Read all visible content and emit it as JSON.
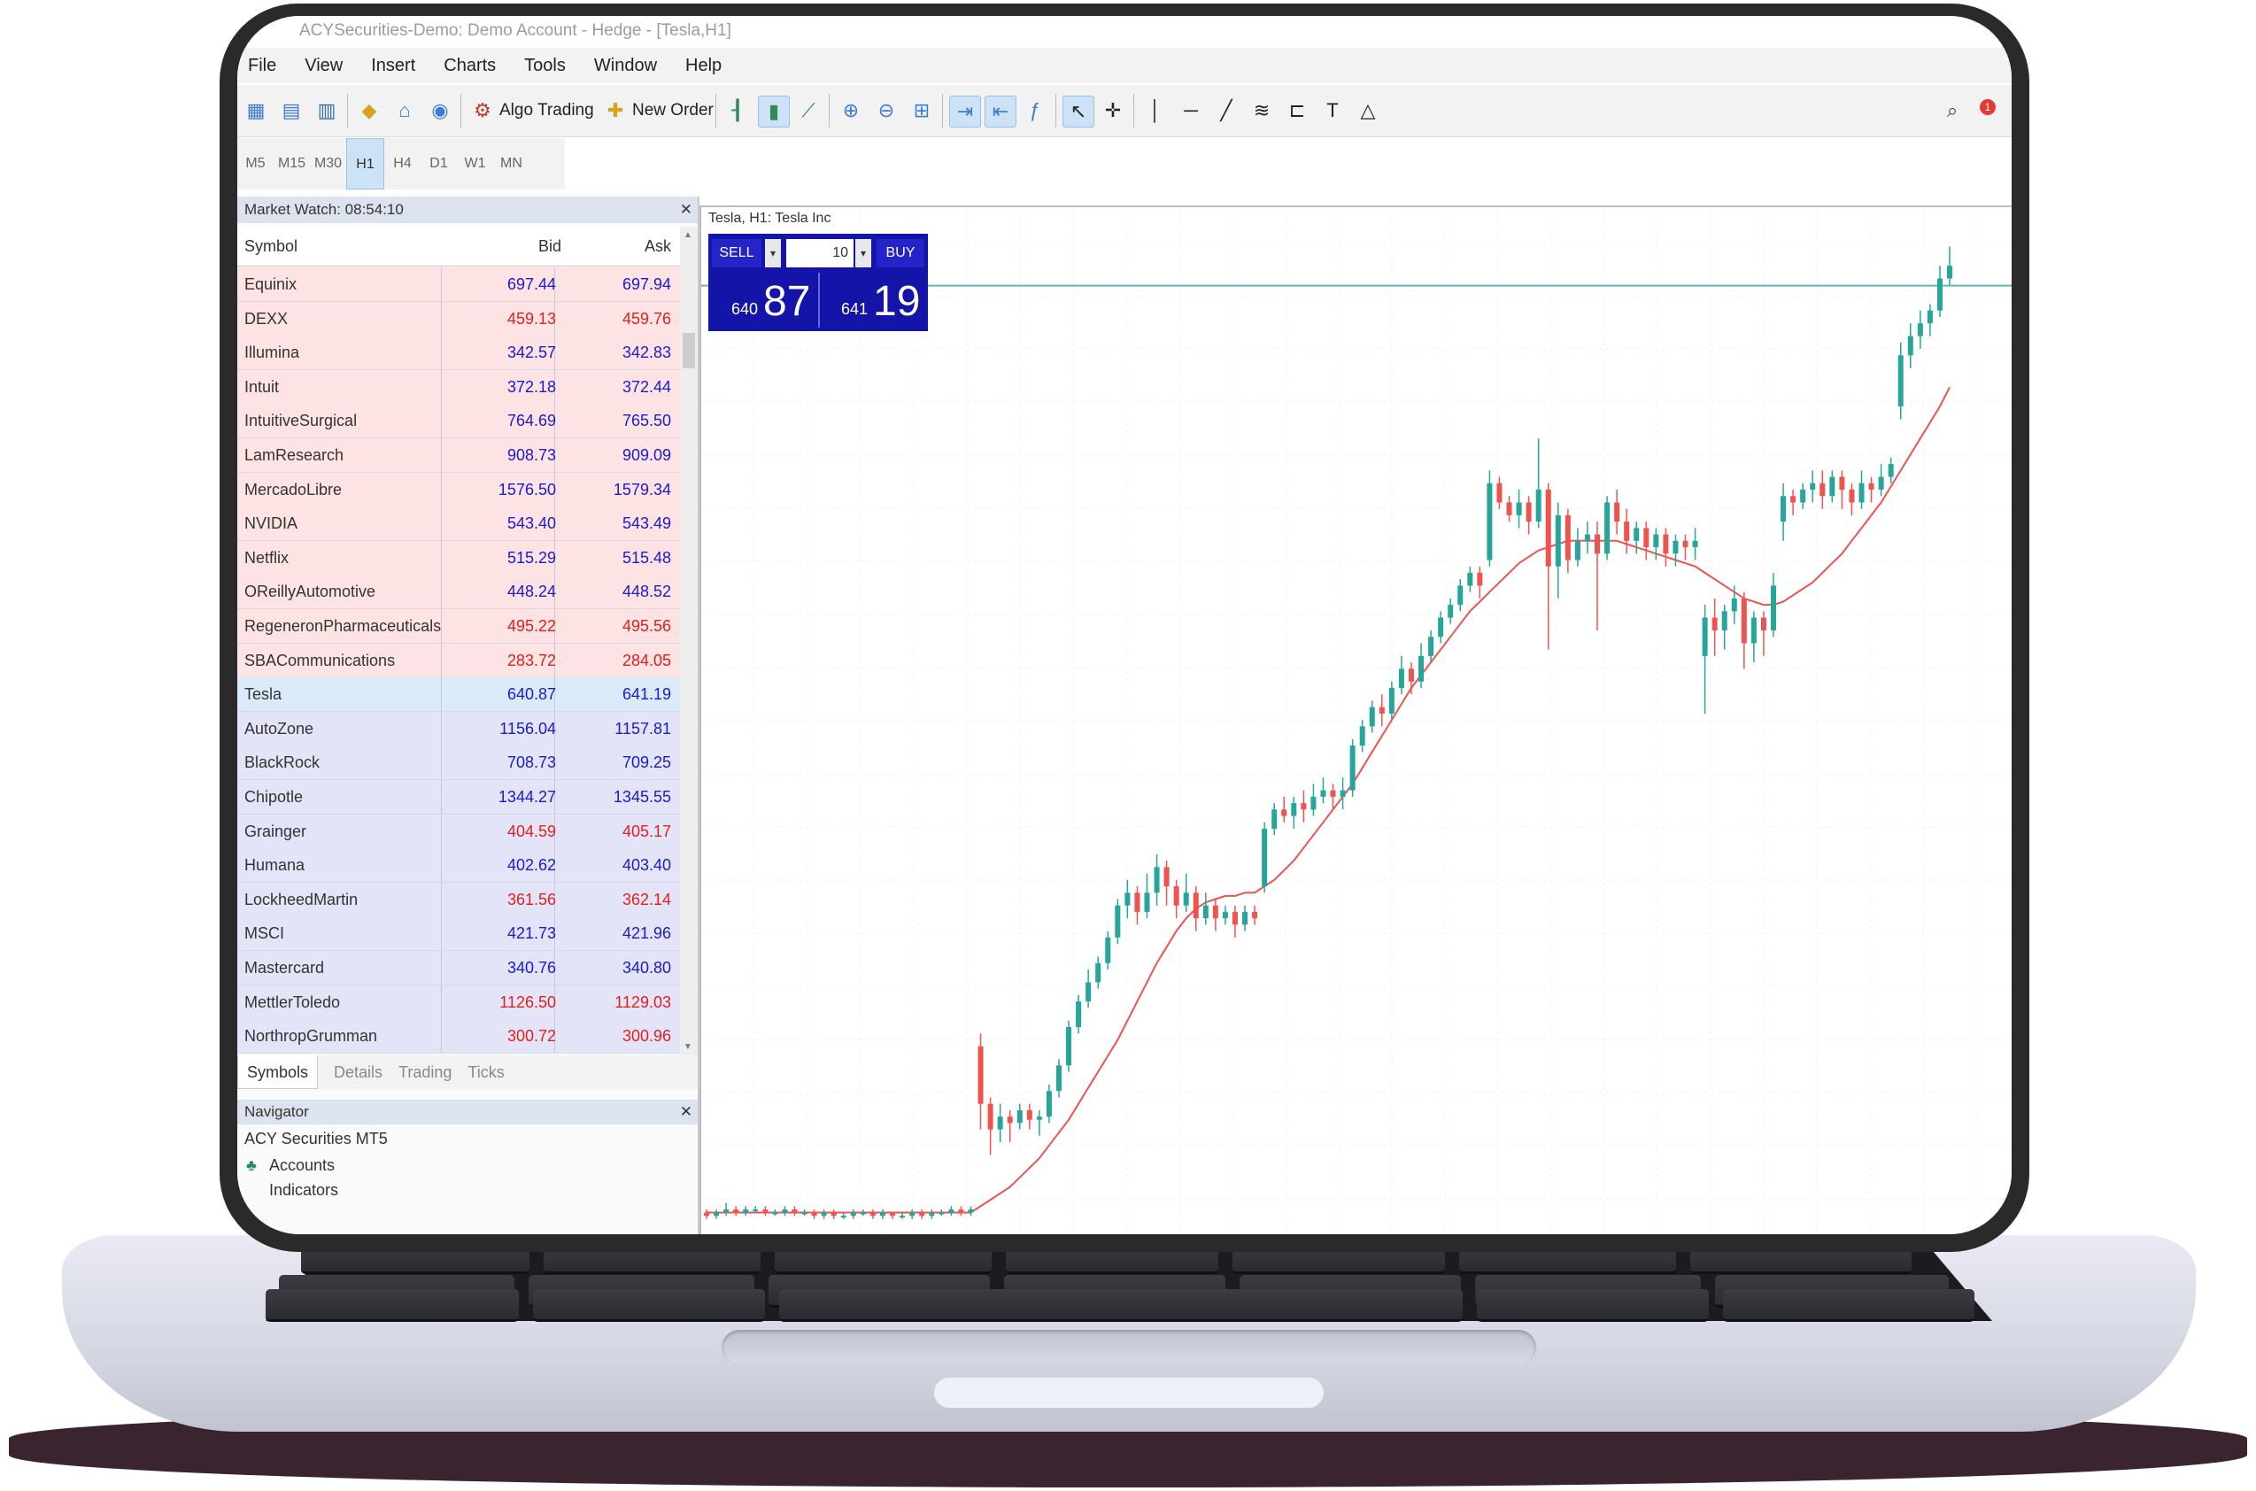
{
  "window": {
    "title": "ACYSecurities-Demo: Demo Account - Hedge - [Tesla,H1]"
  },
  "menu": [
    "File",
    "View",
    "Insert",
    "Charts",
    "Tools",
    "Window",
    "Help"
  ],
  "toolbar": {
    "algo_trading": "Algo Trading",
    "new_order": "New Order",
    "notification_count": "1"
  },
  "timeframes": [
    "M5",
    "M15",
    "M30",
    "H1",
    "H4",
    "D1",
    "W1",
    "MN"
  ],
  "timeframe_selected": "H1",
  "market_watch": {
    "title": "Market Watch: 08:54:10",
    "columns": {
      "symbol": "Symbol",
      "bid": "Bid",
      "ask": "Ask"
    },
    "rows": [
      {
        "symbol": "Equinix",
        "bid": "697.44",
        "ask": "697.94",
        "color": "blue",
        "group": "pink"
      },
      {
        "symbol": "DEXX",
        "bid": "459.13",
        "ask": "459.76",
        "color": "red",
        "group": "pink"
      },
      {
        "symbol": "Illumina",
        "bid": "342.57",
        "ask": "342.83",
        "color": "blue",
        "group": "pink"
      },
      {
        "symbol": "Intuit",
        "bid": "372.18",
        "ask": "372.44",
        "color": "blue",
        "group": "pink"
      },
      {
        "symbol": "IntuitiveSurgical",
        "bid": "764.69",
        "ask": "765.50",
        "color": "blue",
        "group": "pink"
      },
      {
        "symbol": "LamResearch",
        "bid": "908.73",
        "ask": "909.09",
        "color": "blue",
        "group": "pink"
      },
      {
        "symbol": "MercadoLibre",
        "bid": "1576.50",
        "ask": "1579.34",
        "color": "blue",
        "group": "pink"
      },
      {
        "symbol": "NVIDIA",
        "bid": "543.40",
        "ask": "543.49",
        "color": "blue",
        "group": "pink"
      },
      {
        "symbol": "Netflix",
        "bid": "515.29",
        "ask": "515.48",
        "color": "blue",
        "group": "pink"
      },
      {
        "symbol": "OReillyAutomotive",
        "bid": "448.24",
        "ask": "448.52",
        "color": "blue",
        "group": "pink"
      },
      {
        "symbol": "RegeneronPharmaceuticals",
        "bid": "495.22",
        "ask": "495.56",
        "color": "red",
        "group": "pink"
      },
      {
        "symbol": "SBACommunications",
        "bid": "283.72",
        "ask": "284.05",
        "color": "red",
        "group": "pink"
      },
      {
        "symbol": "Tesla",
        "bid": "640.87",
        "ask": "641.19",
        "color": "blue",
        "group": "selected"
      },
      {
        "symbol": "AutoZone",
        "bid": "1156.04",
        "ask": "1157.81",
        "color": "blue",
        "group": "lavender"
      },
      {
        "symbol": "BlackRock",
        "bid": "708.73",
        "ask": "709.25",
        "color": "blue",
        "group": "lavender"
      },
      {
        "symbol": "Chipotle",
        "bid": "1344.27",
        "ask": "1345.55",
        "color": "blue",
        "group": "lavender"
      },
      {
        "symbol": "Grainger",
        "bid": "404.59",
        "ask": "405.17",
        "color": "red",
        "group": "lavender"
      },
      {
        "symbol": "Humana",
        "bid": "402.62",
        "ask": "403.40",
        "color": "blue",
        "group": "lavender"
      },
      {
        "symbol": "LockheedMartin",
        "bid": "361.56",
        "ask": "362.14",
        "color": "red",
        "group": "lavender"
      },
      {
        "symbol": "MSCI",
        "bid": "421.73",
        "ask": "421.96",
        "color": "blue",
        "group": "lavender"
      },
      {
        "symbol": "Mastercard",
        "bid": "340.76",
        "ask": "340.80",
        "color": "blue",
        "group": "lavender"
      },
      {
        "symbol": "MettlerToledo",
        "bid": "1126.50",
        "ask": "1129.03",
        "color": "red",
        "group": "lavender"
      },
      {
        "symbol": "NorthropGrumman",
        "bid": "300.72",
        "ask": "300.96",
        "color": "red",
        "group": "lavender"
      }
    ],
    "tabs": [
      "Symbols",
      "Details",
      "Trading",
      "Ticks"
    ],
    "active_tab": "Symbols"
  },
  "navigator": {
    "title": "Navigator",
    "root": "ACY Securities MT5",
    "items": [
      "Accounts",
      "Indicators"
    ]
  },
  "chart": {
    "title": "Tesla, H1: Tesla Inc",
    "one_click": {
      "sell_label": "SELL",
      "buy_label": "BUY",
      "lot": "10",
      "sell_prefix": "640",
      "sell_big": "87",
      "buy_prefix": "641",
      "buy_big": "19"
    }
  },
  "chart_data": {
    "type": "candlestick",
    "series": [
      {
        "name": "price",
        "values": [
          [
            4,
            3,
            5,
            2
          ],
          [
            3,
            4,
            5,
            2
          ],
          [
            4,
            5,
            7,
            3
          ],
          [
            5,
            4,
            6,
            3
          ],
          [
            4,
            5,
            6,
            3
          ],
          [
            5,
            5,
            6,
            4
          ],
          [
            5,
            4,
            6,
            3
          ],
          [
            4,
            4,
            5,
            3
          ],
          [
            4,
            5,
            6,
            3
          ],
          [
            5,
            4,
            6,
            3
          ],
          [
            4,
            4,
            5,
            3
          ],
          [
            4,
            3,
            5,
            2
          ],
          [
            3,
            4,
            5,
            2
          ],
          [
            4,
            3,
            5,
            2
          ],
          [
            3,
            3,
            4,
            2
          ],
          [
            3,
            4,
            5,
            2
          ],
          [
            4,
            4,
            5,
            3
          ],
          [
            4,
            3,
            5,
            2
          ],
          [
            3,
            4,
            5,
            2
          ],
          [
            4,
            3,
            4,
            2
          ],
          [
            3,
            3,
            4,
            2
          ],
          [
            3,
            4,
            5,
            2
          ],
          [
            4,
            3,
            5,
            2
          ],
          [
            3,
            4,
            5,
            2
          ],
          [
            4,
            4,
            5,
            3
          ],
          [
            4,
            5,
            6,
            3
          ],
          [
            5,
            4,
            6,
            3
          ],
          [
            4,
            5,
            6,
            3
          ],
          [
            56,
            38,
            60,
            30
          ],
          [
            38,
            30,
            40,
            22
          ],
          [
            30,
            34,
            38,
            26
          ],
          [
            34,
            32,
            36,
            26
          ],
          [
            32,
            36,
            38,
            30
          ],
          [
            36,
            33,
            38,
            30
          ],
          [
            33,
            34,
            36,
            28
          ],
          [
            34,
            42,
            44,
            32
          ],
          [
            42,
            50,
            52,
            40
          ],
          [
            50,
            62,
            64,
            48
          ],
          [
            62,
            70,
            72,
            60
          ],
          [
            70,
            76,
            80,
            68
          ],
          [
            76,
            82,
            84,
            74
          ],
          [
            82,
            90,
            92,
            80
          ],
          [
            90,
            100,
            102,
            88
          ],
          [
            100,
            104,
            108,
            96
          ],
          [
            104,
            98,
            106,
            94
          ],
          [
            98,
            104,
            110,
            96
          ],
          [
            104,
            112,
            116,
            100
          ],
          [
            112,
            106,
            114,
            100
          ],
          [
            106,
            100,
            108,
            96
          ],
          [
            100,
            104,
            110,
            98
          ],
          [
            104,
            96,
            106,
            92
          ],
          [
            96,
            100,
            104,
            94
          ],
          [
            100,
            96,
            102,
            92
          ],
          [
            96,
            98,
            100,
            94
          ],
          [
            98,
            94,
            100,
            90
          ],
          [
            94,
            98,
            100,
            92
          ],
          [
            98,
            96,
            100,
            94
          ],
          [
            106,
            124,
            126,
            104
          ],
          [
            124,
            130,
            132,
            122
          ],
          [
            130,
            128,
            134,
            126
          ],
          [
            128,
            132,
            134,
            124
          ],
          [
            132,
            130,
            136,
            126
          ],
          [
            130,
            134,
            138,
            128
          ],
          [
            134,
            136,
            140,
            132
          ],
          [
            136,
            134,
            138,
            130
          ],
          [
            134,
            136,
            140,
            130
          ],
          [
            136,
            150,
            152,
            134
          ],
          [
            150,
            156,
            158,
            148
          ],
          [
            156,
            162,
            164,
            154
          ],
          [
            162,
            160,
            166,
            156
          ],
          [
            160,
            168,
            170,
            158
          ],
          [
            168,
            174,
            178,
            166
          ],
          [
            174,
            170,
            176,
            166
          ],
          [
            170,
            178,
            182,
            168
          ],
          [
            178,
            184,
            186,
            176
          ],
          [
            184,
            190,
            192,
            182
          ],
          [
            190,
            194,
            196,
            188
          ],
          [
            194,
            200,
            202,
            192
          ],
          [
            200,
            204,
            206,
            198
          ],
          [
            204,
            200,
            206,
            196
          ],
          [
            208,
            232,
            236,
            206
          ],
          [
            232,
            226,
            234,
            224
          ],
          [
            226,
            222,
            228,
            220
          ],
          [
            222,
            226,
            230,
            218
          ],
          [
            226,
            220,
            228,
            216
          ],
          [
            220,
            230,
            246,
            218
          ],
          [
            230,
            206,
            232,
            180
          ],
          [
            206,
            222,
            226,
            196
          ],
          [
            222,
            208,
            224,
            204
          ],
          [
            208,
            214,
            218,
            206
          ],
          [
            214,
            216,
            220,
            210
          ],
          [
            216,
            210,
            220,
            186
          ],
          [
            210,
            226,
            228,
            208
          ],
          [
            226,
            220,
            230,
            216
          ],
          [
            220,
            214,
            224,
            210
          ],
          [
            214,
            218,
            220,
            210
          ],
          [
            218,
            212,
            220,
            208
          ],
          [
            212,
            216,
            218,
            208
          ],
          [
            216,
            210,
            218,
            206
          ],
          [
            210,
            214,
            216,
            206
          ],
          [
            214,
            212,
            216,
            208
          ],
          [
            212,
            214,
            218,
            208
          ],
          [
            178,
            190,
            194,
            160
          ],
          [
            190,
            186,
            196,
            178
          ],
          [
            186,
            192,
            194,
            180
          ],
          [
            192,
            196,
            200,
            188
          ],
          [
            196,
            182,
            198,
            174
          ],
          [
            182,
            190,
            192,
            176
          ],
          [
            190,
            186,
            192,
            178
          ],
          [
            186,
            200,
            204,
            184
          ],
          [
            220,
            228,
            232,
            214
          ],
          [
            228,
            226,
            230,
            222
          ],
          [
            226,
            230,
            232,
            224
          ],
          [
            230,
            232,
            236,
            226
          ],
          [
            232,
            228,
            236,
            224
          ],
          [
            228,
            234,
            236,
            226
          ],
          [
            234,
            230,
            236,
            224
          ],
          [
            230,
            226,
            232,
            222
          ],
          [
            226,
            232,
            236,
            224
          ],
          [
            232,
            230,
            234,
            226
          ],
          [
            230,
            234,
            238,
            228
          ],
          [
            234,
            238,
            240,
            232
          ],
          [
            256,
            272,
            276,
            252
          ],
          [
            272,
            278,
            282,
            268
          ],
          [
            278,
            282,
            286,
            274
          ],
          [
            282,
            286,
            288,
            278
          ],
          [
            286,
            296,
            300,
            284
          ],
          [
            296,
            300,
            306,
            294
          ]
        ]
      },
      {
        "name": "moving-average",
        "values": [
          4,
          4,
          4,
          4,
          4,
          4,
          4,
          4,
          4,
          4,
          4,
          4,
          4,
          4,
          4,
          4,
          4,
          4,
          4,
          4,
          4,
          4,
          4,
          4,
          4,
          4,
          4,
          4,
          6,
          8,
          10,
          12,
          15,
          18,
          21,
          25,
          29,
          33,
          38,
          43,
          48,
          53,
          58,
          64,
          70,
          76,
          82,
          87,
          92,
          96,
          99,
          101,
          102,
          103,
          103,
          104,
          104,
          106,
          108,
          111,
          114,
          118,
          122,
          126,
          130,
          134,
          138,
          143,
          148,
          153,
          158,
          163,
          168,
          172,
          176,
          180,
          184,
          188,
          192,
          195,
          198,
          201,
          204,
          207,
          209,
          211,
          212,
          213,
          214,
          214,
          214,
          214,
          214,
          214,
          213,
          212,
          211,
          210,
          209,
          208,
          207,
          206,
          204,
          202,
          200,
          198,
          196,
          195,
          194,
          194,
          195,
          197,
          199,
          201,
          204,
          207,
          210,
          214,
          218,
          222,
          226,
          231,
          236,
          241,
          246,
          251,
          256,
          262
        ]
      }
    ],
    "current_price": 296,
    "grid": true,
    "colors": {
      "up": "#26a69a",
      "down": "#ef5350",
      "moving_average": "#ef5350",
      "bid_line": "#5fb8b0"
    }
  }
}
